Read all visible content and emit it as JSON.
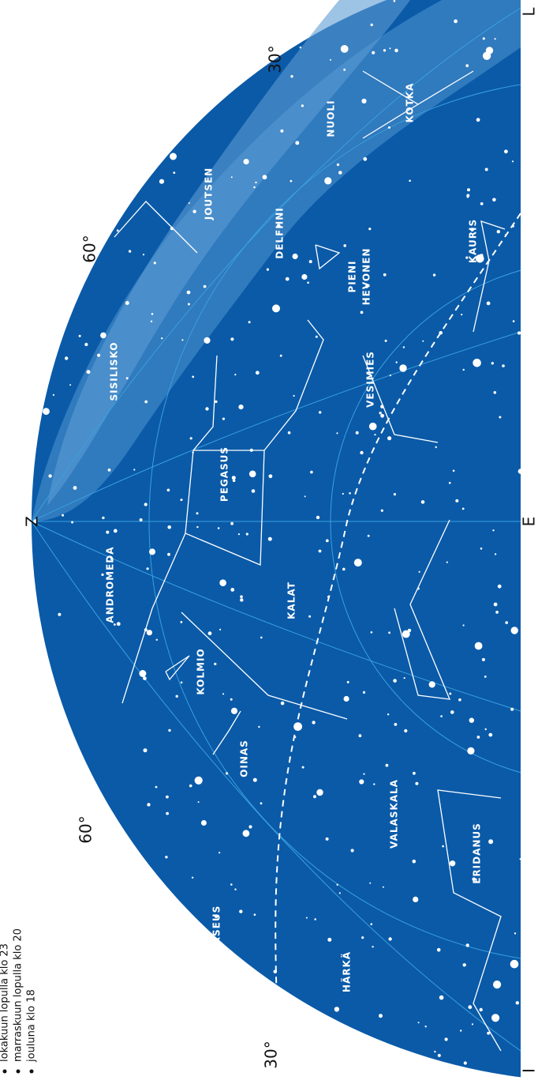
{
  "compass": {
    "zenith": "Z",
    "east": "E",
    "north": "L",
    "south": "I"
  },
  "altitudes": [
    "30°",
    "60°",
    "60°",
    "30°"
  ],
  "times": [
    "lokakuun lopulla klo 23",
    "marraskuun lopulla klo 20",
    "jouluna klo 18"
  ],
  "constellations": [
    "KOTKA",
    "NUOLI",
    "JOUTSEN",
    "DELFIINI",
    "PIENI",
    "HEVONEN",
    "KAURIS",
    "SISILISKO",
    "VESIMIES",
    "PEGASUS",
    "ANDROMEDA",
    "KALAT",
    "KOLMIO",
    "OINAS",
    "VALASKALA",
    "ERIDANUS",
    "PERSEUS",
    "HÄRKÄ"
  ]
}
